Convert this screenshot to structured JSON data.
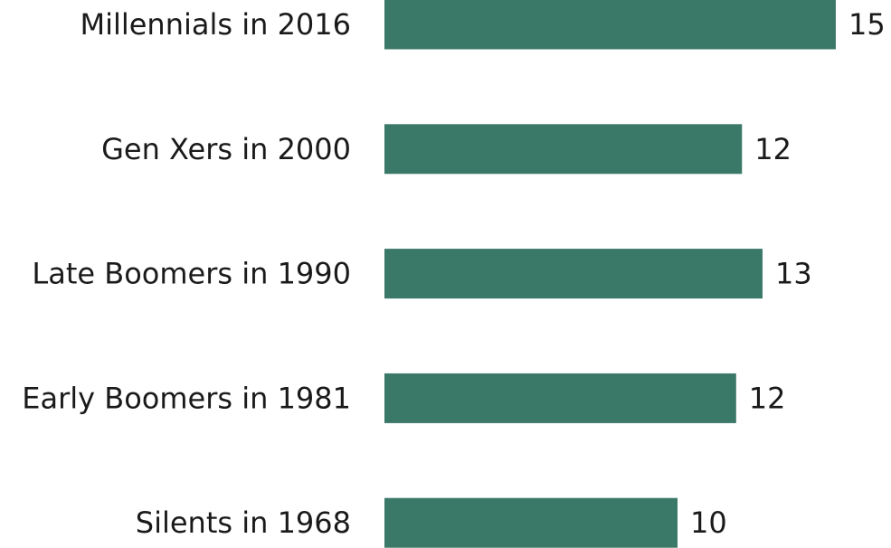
{
  "chart_data": {
    "type": "barh",
    "categories": [
      "Millennials in 2016",
      "Gen Xers in 2000",
      "Late Boomers in 1990",
      "Early Boomers in 1981",
      "Silents in 1968"
    ],
    "values": [
      15.4,
      12.2,
      12.9,
      12.0,
      10.0
    ],
    "value_labels": [
      "15",
      "12",
      "13",
      "12",
      "10"
    ],
    "color": "#3a7867"
  }
}
